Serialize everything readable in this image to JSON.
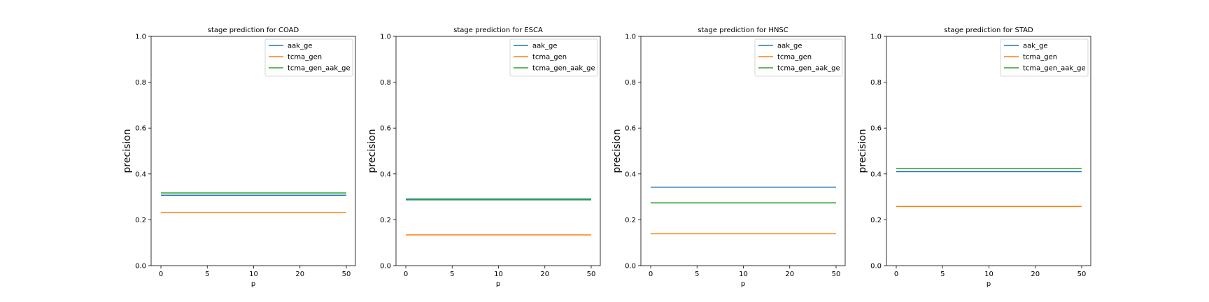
{
  "chart_data": [
    {
      "type": "line",
      "title": "stage prediction for COAD",
      "xlabel": "p",
      "ylabel": "precision",
      "x": [
        "0",
        "5",
        "10",
        "20",
        "50"
      ],
      "ylim": [
        0,
        1.0
      ],
      "yticks": [
        "0.0",
        "0.2",
        "0.4",
        "0.6",
        "0.8",
        "1.0"
      ],
      "grid": false,
      "legend_position": "top-right",
      "series": [
        {
          "name": "aak_ge",
          "color": "#1f77b4",
          "values": [
            0.307,
            0.307,
            0.307,
            0.307,
            0.307
          ]
        },
        {
          "name": "tcma_gen",
          "color": "#ff7f0e",
          "values": [
            0.232,
            0.232,
            0.232,
            0.232,
            0.232
          ]
        },
        {
          "name": "tcma_gen_aak_ge",
          "color": "#2ca02c",
          "values": [
            0.317,
            0.317,
            0.317,
            0.317,
            0.317
          ]
        }
      ]
    },
    {
      "type": "line",
      "title": "stage prediction for ESCA",
      "xlabel": "p",
      "ylabel": "precision",
      "x": [
        "0",
        "5",
        "10",
        "20",
        "50"
      ],
      "ylim": [
        0,
        1.0
      ],
      "yticks": [
        "0.0",
        "0.2",
        "0.4",
        "0.6",
        "0.8",
        "1.0"
      ],
      "grid": false,
      "legend_position": "top-right",
      "series": [
        {
          "name": "aak_ge",
          "color": "#1f77b4",
          "values": [
            0.291,
            0.291,
            0.291,
            0.291,
            0.291
          ]
        },
        {
          "name": "tcma_gen",
          "color": "#ff7f0e",
          "values": [
            0.134,
            0.134,
            0.134,
            0.134,
            0.134
          ]
        },
        {
          "name": "tcma_gen_aak_ge",
          "color": "#2ca02c",
          "values": [
            0.287,
            0.287,
            0.287,
            0.287,
            0.287
          ]
        }
      ]
    },
    {
      "type": "line",
      "title": "stage prediction for HNSC",
      "xlabel": "p",
      "ylabel": "precision",
      "x": [
        "0",
        "5",
        "10",
        "20",
        "50"
      ],
      "ylim": [
        0,
        1.0
      ],
      "yticks": [
        "0.0",
        "0.2",
        "0.4",
        "0.6",
        "0.8",
        "1.0"
      ],
      "grid": false,
      "legend_position": "top-right",
      "series": [
        {
          "name": "aak_ge",
          "color": "#1f77b4",
          "values": [
            0.342,
            0.342,
            0.342,
            0.342,
            0.342
          ]
        },
        {
          "name": "tcma_gen",
          "color": "#ff7f0e",
          "values": [
            0.139,
            0.139,
            0.139,
            0.139,
            0.139
          ]
        },
        {
          "name": "tcma_gen_aak_ge",
          "color": "#2ca02c",
          "values": [
            0.274,
            0.274,
            0.274,
            0.274,
            0.274
          ]
        }
      ]
    },
    {
      "type": "line",
      "title": "stage prediction for STAD",
      "xlabel": "p",
      "ylabel": "precision",
      "x": [
        "0",
        "5",
        "10",
        "20",
        "50"
      ],
      "ylim": [
        0,
        1.0
      ],
      "yticks": [
        "0.0",
        "0.2",
        "0.4",
        "0.6",
        "0.8",
        "1.0"
      ],
      "grid": false,
      "legend_position": "top-right",
      "series": [
        {
          "name": "aak_ge",
          "color": "#1f77b4",
          "values": [
            0.41,
            0.41,
            0.41,
            0.41,
            0.41
          ]
        },
        {
          "name": "tcma_gen",
          "color": "#ff7f0e",
          "values": [
            0.258,
            0.258,
            0.258,
            0.258,
            0.258
          ]
        },
        {
          "name": "tcma_gen_aak_ge",
          "color": "#2ca02c",
          "values": [
            0.423,
            0.423,
            0.423,
            0.423,
            0.423
          ]
        }
      ]
    }
  ]
}
